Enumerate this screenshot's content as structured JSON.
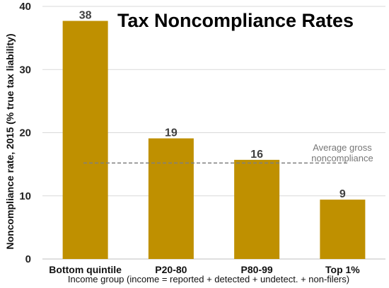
{
  "chart_data": {
    "type": "bar",
    "title": "Tax Noncompliance Rates",
    "ylabel": "Noncompliance rate, 2015 (% true tax liability)",
    "xlabel": "Income group (income = reported + detected + undetect. + non-filers)",
    "categories": [
      "Bottom quintile",
      "P20-80",
      "P80-99",
      "Top 1%"
    ],
    "values": [
      37.7,
      19.1,
      15.7,
      9.4
    ],
    "data_labels": [
      "38",
      "19",
      "16",
      "9"
    ],
    "ylim": [
      0,
      40
    ],
    "yticks": [
      0,
      10,
      20,
      30,
      40
    ],
    "bar_color": "#BF9000",
    "grid": true,
    "reference_line": {
      "value": 15.2,
      "label_line1": "Average gross",
      "label_line2": "noncompliance",
      "style": "dashed",
      "color": "#7F7F7F"
    }
  }
}
